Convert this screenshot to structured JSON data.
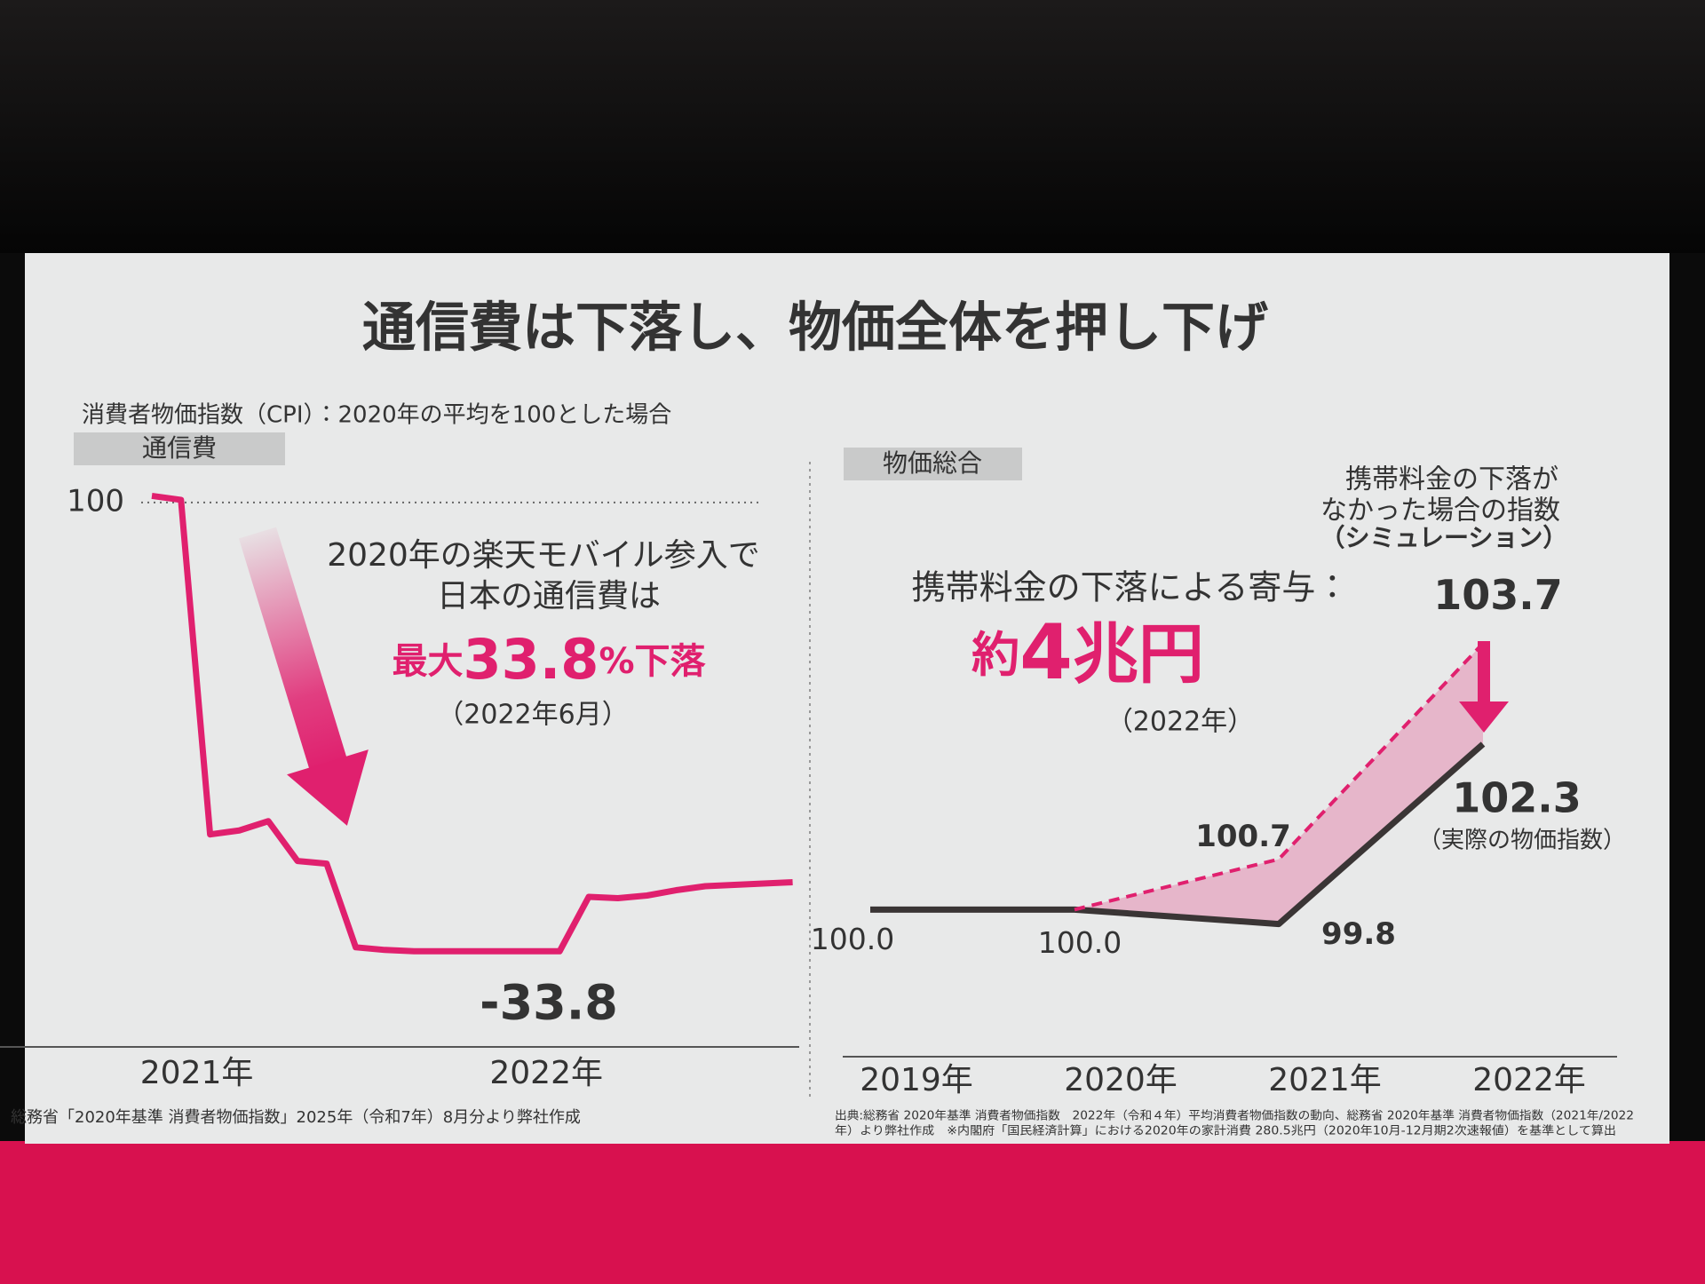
{
  "title": "通信費は下落し、物価全体を押し下げ",
  "subtitle": "消費者物価指数（CPI）：2020年の平均を100とした場合",
  "chart_data": [
    {
      "type": "line",
      "label": "通信費",
      "categories": [
        null,
        null,
        "2021年",
        null,
        null,
        null,
        null,
        null,
        null,
        null,
        null,
        null,
        null,
        null,
        "2022年",
        null,
        null,
        null,
        null,
        null,
        null,
        null,
        null
      ],
      "values": [
        100.5,
        100.2,
        75.0,
        75.3,
        76.0,
        73.0,
        72.8,
        66.5,
        66.3,
        66.2,
        66.2,
        66.2,
        66.2,
        66.2,
        66.2,
        70.3,
        70.2,
        70.4,
        70.8,
        71.1,
        71.2,
        71.3,
        71.4
      ],
      "color": "#e0206e",
      "ylim": [
        60,
        102
      ],
      "reference_line": 100,
      "annotations": [
        "2020年の楽天モバイル参入で",
        "日本の通信費は",
        "最大",
        "33.8",
        "%下落",
        "（2022年6月）",
        "-33.8"
      ],
      "source": "総務省「2020年基準 消費者物価指数」2025年（令和7年）8月分より弊社作成"
    },
    {
      "type": "line",
      "label": "物価総合",
      "categories": [
        "2019年",
        "2020年",
        "2021年",
        "2022年"
      ],
      "ylim": [
        99.4,
        104.2
      ],
      "fill_between": true,
      "series": [
        {
          "name": "（実際の物価指数）",
          "color": "#3a3535",
          "values": [
            100,
            100,
            99.8,
            102.3
          ],
          "value_labels": [
            "100.0",
            "100.0",
            "99.8",
            "102.3"
          ]
        },
        {
          "name": "（シミュレーション）",
          "color": "#e0206e",
          "dashed": true,
          "values": [
            null,
            100,
            100.7,
            103.7
          ],
          "value_labels": [
            null,
            null,
            "100.7",
            "103.7"
          ]
        }
      ],
      "annotations": [
        "携帯料金の下落が",
        "なかった場合の指数",
        "携帯料金の下落による寄与：",
        "約",
        "4",
        "兆円",
        "（2022年）"
      ],
      "source": [
        "出典:総務省 2020年基準 消費者物価指数　2022年（令和４年）平均消費者物価指数の動向、総務省 2020年基準 消費者物価指数（2021年/2022",
        "年）より弊社作成　※内閣府「国民経済計算」における2020年の家計消費 280.5兆円（2020年10月-12月期2次速報値）を基準として算出"
      ]
    }
  ]
}
